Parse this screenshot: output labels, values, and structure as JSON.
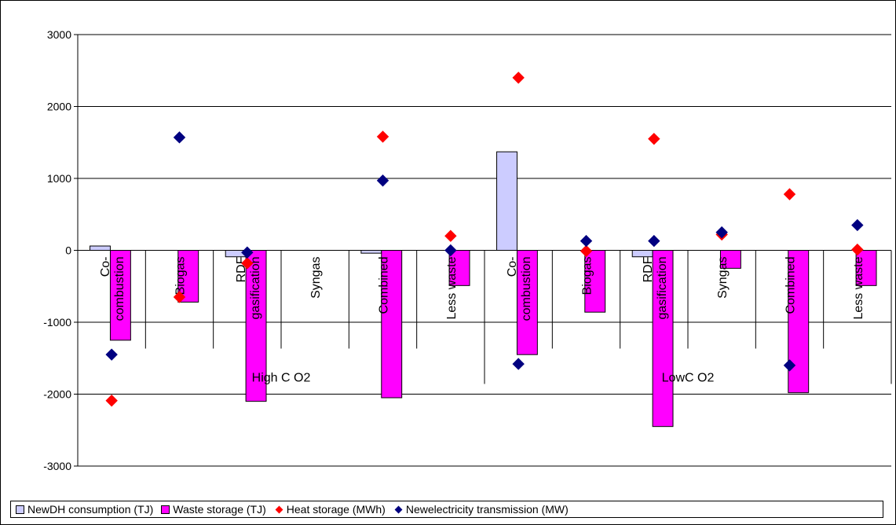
{
  "chart_data": {
    "type": "bar",
    "groups": [
      {
        "label": "High C O2",
        "categories": [
          "Co-\ncombustion",
          "Biogas",
          "RDF\ngasification",
          "Syngas",
          "Combined",
          "Less waste"
        ]
      },
      {
        "label": "LowC O2",
        "categories": [
          "Co-\ncombustion",
          "Biogas",
          "RDF\ngasification",
          "Syngas",
          "Combined",
          "Less waste"
        ]
      }
    ],
    "categories": [
      "Co- combustion",
      "Biogas",
      "RDF gasification",
      "Syngas",
      "Combined",
      "Less waste",
      "Co- combustion",
      "Biogas",
      "RDF gasification",
      "Syngas",
      "Combined",
      "Less waste"
    ],
    "ylim": [
      -3000,
      3000
    ],
    "yticks": [
      3000,
      2000,
      1000,
      0,
      -1000,
      -2000,
      -3000
    ],
    "grid": true,
    "legend_position": "bottom",
    "series": [
      {
        "name": "NewDH consumption (TJ)",
        "kind": "bar",
        "color": "#ccccff",
        "values": [
          60,
          0,
          -90,
          0,
          -40,
          0,
          1370,
          0,
          -90,
          0,
          0,
          0
        ]
      },
      {
        "name": "Waste storage (TJ)",
        "kind": "bar",
        "color": "#ff00ff",
        "values": [
          -1250,
          -720,
          -2100,
          0,
          -2050,
          -490,
          -1450,
          -860,
          -2450,
          -250,
          -1980,
          -490
        ]
      },
      {
        "name": "Heat storage (MWh)",
        "kind": "marker",
        "color": "#ff0000",
        "values": [
          -2090,
          -650,
          -180,
          null,
          1580,
          200,
          2400,
          -10,
          1550,
          220,
          780,
          10
        ]
      },
      {
        "name": "Newelectricity transmission (MW)",
        "kind": "marker",
        "color": "#000080",
        "values": [
          -1450,
          1570,
          -30,
          null,
          970,
          0,
          -1580,
          130,
          130,
          250,
          -1600,
          350
        ]
      }
    ]
  }
}
